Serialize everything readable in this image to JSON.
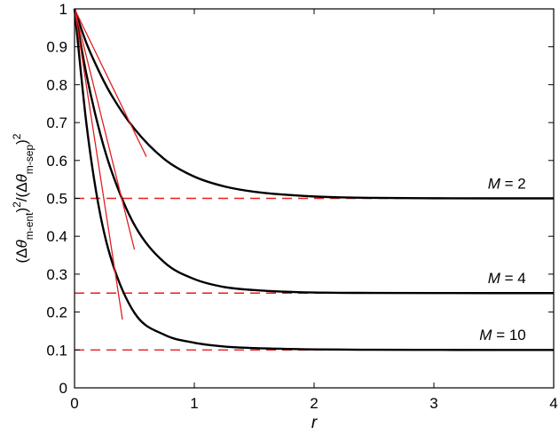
{
  "chart_data": {
    "type": "line",
    "title": "",
    "xlabel": "r",
    "ylabel": {
      "p1": "(Δ",
      "theta": "θ",
      "sub1": "m-ent",
      "p2": ")",
      "sup": "2",
      "p3": "/(Δ",
      "sub2": "m-sep",
      "p4": ")"
    },
    "xlim": [
      0,
      4
    ],
    "ylim": [
      0,
      1
    ],
    "xticks": [
      0,
      1,
      2,
      3,
      4
    ],
    "yticks": [
      0,
      0.1,
      0.2,
      0.3,
      0.4,
      0.5,
      0.6,
      0.7,
      0.8,
      0.9,
      1
    ],
    "xtick_labels": [
      "0",
      "1",
      "2",
      "3",
      "4"
    ],
    "ytick_labels": [
      "0",
      "0.1",
      "0.2",
      "0.3",
      "0.4",
      "0.5",
      "0.6",
      "0.7",
      "0.8",
      "0.9",
      "1"
    ],
    "grid": false,
    "series": [
      {
        "M": 2,
        "style": "black-solid",
        "x": [
          0,
          0.1,
          0.2,
          0.3,
          0.5,
          0.75,
          1.0,
          1.25,
          1.5,
          2.0,
          2.5,
          3.0,
          3.5,
          4.0
        ],
        "y": [
          1.0,
          0.9091,
          0.838,
          0.777,
          0.6835,
          0.6036,
          0.5574,
          0.5316,
          0.5175,
          0.505,
          0.5013,
          0.5003,
          0.5,
          0.5
        ]
      },
      {
        "M": 4,
        "style": "black-solid",
        "x": [
          0,
          0.1,
          0.2,
          0.3,
          0.5,
          0.75,
          1.0,
          1.25,
          1.5,
          2.0,
          2.5,
          3.0,
          3.5,
          4.0
        ],
        "y": [
          1.0,
          0.826,
          0.688,
          0.58,
          0.43,
          0.331,
          0.287,
          0.266,
          0.258,
          0.2515,
          0.2505,
          0.2501,
          0.25,
          0.25
        ]
      },
      {
        "M": 10,
        "style": "black-solid",
        "x": [
          0,
          0.1,
          0.2,
          0.3,
          0.5,
          0.75,
          1.0,
          1.25,
          1.5,
          2.0,
          2.5,
          3.0,
          3.5,
          4.0
        ],
        "y": [
          1.0,
          0.695,
          0.482,
          0.346,
          0.198,
          0.14,
          0.119,
          0.109,
          0.105,
          0.1015,
          0.1005,
          0.1002,
          0.1,
          0.1
        ]
      },
      {
        "M": 2,
        "style": "red-solid",
        "x": [
          0,
          0.6
        ],
        "y": [
          1.0,
          0.61
        ]
      },
      {
        "M": 4,
        "style": "red-solid",
        "x": [
          0,
          0.5
        ],
        "y": [
          1.0,
          0.365
        ]
      },
      {
        "M": 10,
        "style": "red-solid",
        "x": [
          0,
          0.4
        ],
        "y": [
          1.0,
          0.18
        ]
      },
      {
        "M": 2,
        "style": "red-dashed",
        "x": [
          0,
          4
        ],
        "y": [
          0.5,
          0.5
        ]
      },
      {
        "M": 4,
        "style": "red-dashed",
        "x": [
          0,
          4
        ],
        "y": [
          0.25,
          0.25
        ]
      },
      {
        "M": 10,
        "style": "red-dashed",
        "x": [
          0,
          4
        ],
        "y": [
          0.1,
          0.1
        ]
      }
    ],
    "annotations": [
      {
        "var": "M",
        "text": " = 2",
        "x": 3.45,
        "y": 0.54
      },
      {
        "var": "M",
        "text": " = 4",
        "x": 3.45,
        "y": 0.29
      },
      {
        "var": "M",
        "text": " = 10",
        "x": 3.38,
        "y": 0.14
      }
    ],
    "colors": {
      "black": "#000000",
      "red": "#e02020"
    }
  }
}
